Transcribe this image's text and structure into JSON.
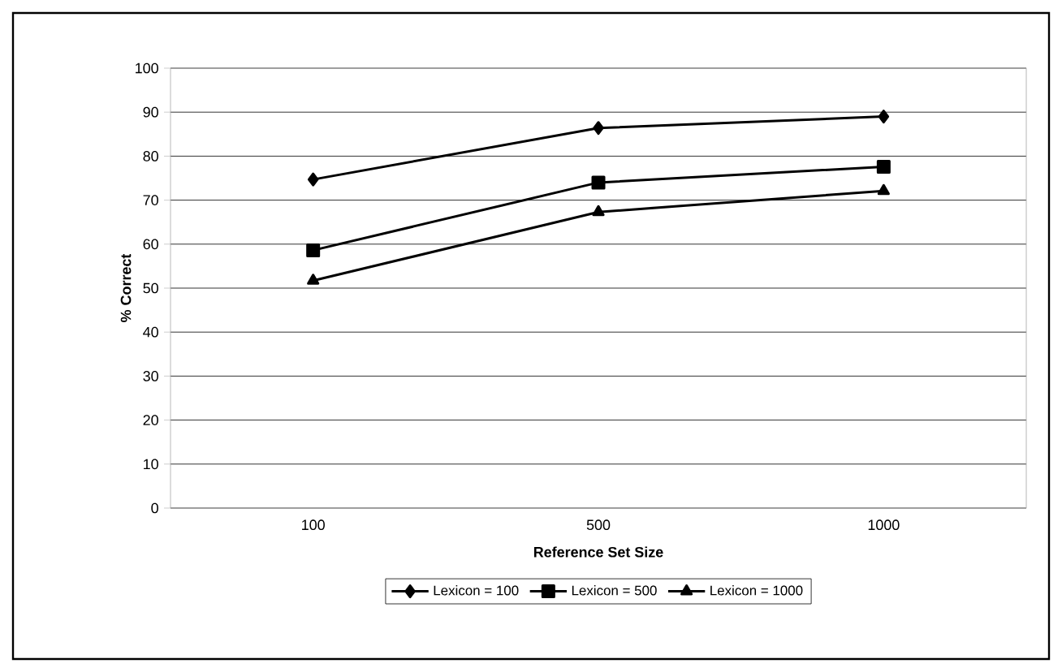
{
  "chart_data": {
    "type": "line",
    "xlabel": "Reference Set Size",
    "ylabel": "% Correct",
    "categories": [
      "100",
      "500",
      "1000"
    ],
    "series": [
      {
        "name": "Lexicon = 100",
        "color": "#000000",
        "marker": "diamond",
        "values": [
          74.7,
          86.4,
          89.0
        ]
      },
      {
        "name": "Lexicon = 500",
        "color": "#000000",
        "marker": "square",
        "values": [
          58.6,
          74.0,
          77.6
        ]
      },
      {
        "name": "Lexicon = 1000",
        "color": "#000000",
        "marker": "triangle",
        "values": [
          51.7,
          67.3,
          72.1
        ]
      }
    ],
    "ylim": [
      0,
      100
    ],
    "yticks": [
      0,
      10,
      20,
      30,
      40,
      50,
      60,
      70,
      80,
      90,
      100
    ],
    "grid": "y",
    "legend": "bottom",
    "line_style": "solid"
  }
}
